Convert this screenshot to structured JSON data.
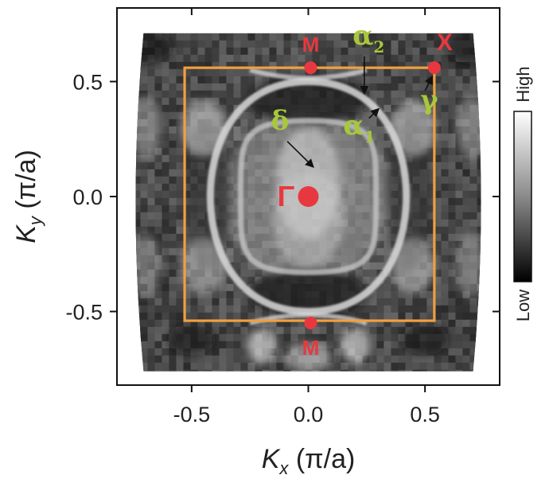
{
  "chart_data": {
    "type": "heatmap",
    "title": "",
    "xlabel": {
      "main": "K",
      "sub": "x",
      "unit": " (π/a)"
    },
    "ylabel": {
      "main": "K",
      "sub": "y",
      "unit": " (π/a)"
    },
    "xlim": [
      -0.82,
      0.82
    ],
    "ylim": [
      -0.82,
      0.82
    ],
    "data_extent": {
      "x": [
        -0.74,
        0.74
      ],
      "y": [
        -0.76,
        0.71
      ]
    },
    "xticks": [
      {
        "value": -0.5,
        "label": "-0.5"
      },
      {
        "value": 0.0,
        "label": "0.0"
      },
      {
        "value": 0.5,
        "label": "0.5"
      }
    ],
    "yticks": [
      {
        "value": 0.5,
        "label": "0.5"
      },
      {
        "value": 0.0,
        "label": "0.0"
      },
      {
        "value": -0.5,
        "label": "-0.5"
      }
    ],
    "grid": false,
    "colorbar": {
      "high_label": "High",
      "low_label": "Low",
      "colormap": "grayscale"
    },
    "brillouin_zone": {
      "x": [
        -0.53,
        0.54
      ],
      "y": [
        -0.54,
        0.56
      ],
      "color": "#f0a040"
    },
    "symmetry_points": [
      {
        "label": "M",
        "x": 0.01,
        "y": 0.56,
        "color": "#e8383f"
      },
      {
        "label": "M",
        "x": 0.01,
        "y": -0.55,
        "color": "#e8383f"
      },
      {
        "label": "Γ",
        "x": 0.0,
        "y": 0.0,
        "color": "#e8383f"
      },
      {
        "label": "X",
        "x": 0.54,
        "y": 0.56,
        "color": "#e8383f"
      }
    ],
    "pocket_labels": [
      {
        "main": "α",
        "sub": "2",
        "x": 0.19,
        "y": 0.66
      },
      {
        "main": "α",
        "sub": "1",
        "x": 0.15,
        "y": 0.27
      },
      {
        "main": "δ",
        "sub": "",
        "x": -0.16,
        "y": 0.29
      },
      {
        "main": "γ",
        "sub": "",
        "x": 0.48,
        "y": 0.38
      }
    ],
    "label_color": "#a8c83a",
    "arrows": [
      {
        "from": [
          0.24,
          0.61
        ],
        "to": [
          0.24,
          0.45
        ]
      },
      {
        "from": [
          0.26,
          0.34
        ],
        "to": [
          0.3,
          0.38
        ]
      },
      {
        "from": [
          -0.09,
          0.24
        ],
        "to": [
          0.02,
          0.13
        ]
      },
      {
        "from": [
          0.5,
          0.46
        ],
        "to": [
          0.53,
          0.52
        ]
      }
    ]
  }
}
